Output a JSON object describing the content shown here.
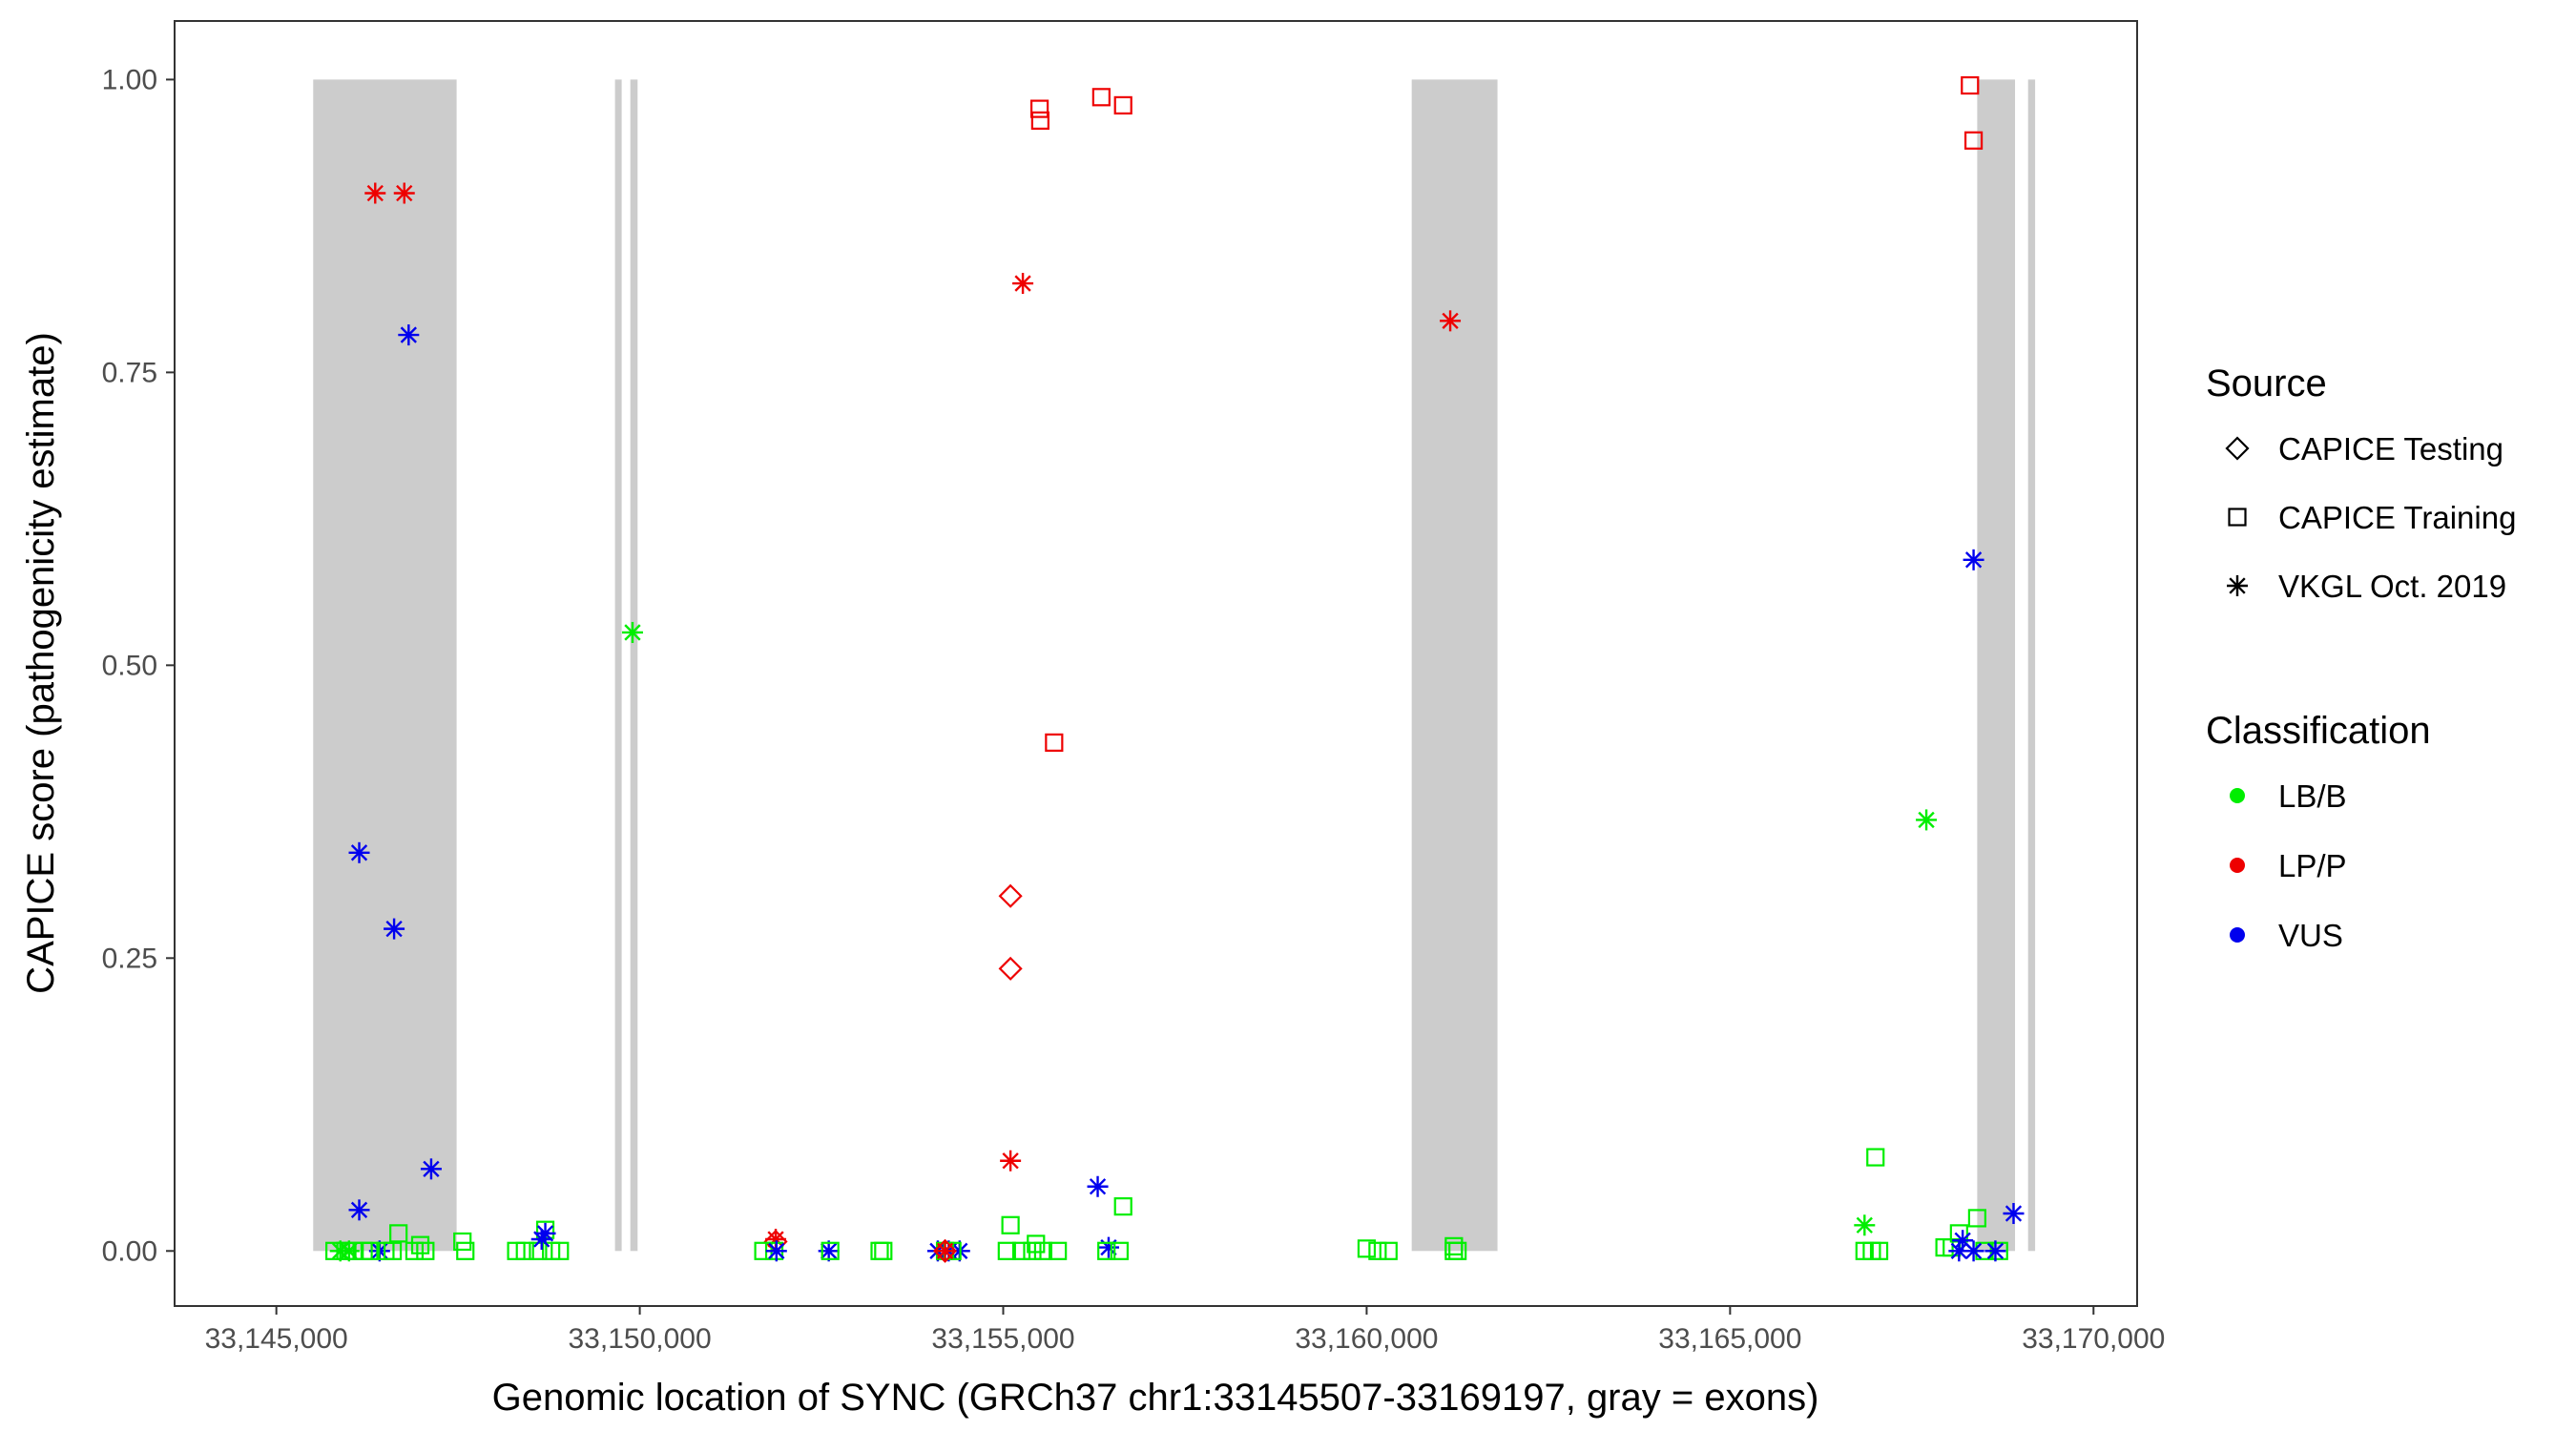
{
  "chart_data": {
    "type": "scatter",
    "title": "",
    "xlabel": "Genomic location of SYNC (GRCh37 chr1:33145507-33169197, gray = exons)",
    "ylabel": "CAPICE score (pathogenicity estimate)",
    "xlim": [
      33143600,
      33170600
    ],
    "ylim": [
      -0.047,
      1.05
    ],
    "x_ticks": [
      33145000,
      33150000,
      33155000,
      33160000,
      33165000,
      33170000
    ],
    "x_tick_labels": [
      "33,145,000",
      "33,150,000",
      "33,155,000",
      "33,160,000",
      "33,165,000",
      "33,170,000"
    ],
    "y_ticks": [
      0,
      0.25,
      0.5,
      0.75,
      1.0
    ],
    "y_tick_labels": [
      "0.00",
      "0.25",
      "0.50",
      "0.75",
      "1.00"
    ],
    "grid": false,
    "exons": [
      [
        33145507,
        33147480
      ],
      [
        33149670,
        33149740
      ],
      [
        33149870,
        33149970
      ],
      [
        33160620,
        33161800
      ],
      [
        33168400,
        33168920
      ],
      [
        33169100,
        33169197
      ]
    ],
    "legend": {
      "placement": "right",
      "source_title": "Source",
      "source_entries": [
        {
          "key": "testing",
          "label": "CAPICE Testing",
          "shape": "diamond"
        },
        {
          "key": "training",
          "label": "CAPICE Training",
          "shape": "square"
        },
        {
          "key": "vkgl",
          "label": "VKGL Oct. 2019",
          "shape": "asterisk"
        }
      ],
      "class_title": "Classification",
      "class_entries": [
        {
          "key": "LB",
          "label": "LB/B",
          "color": "#00ee00"
        },
        {
          "key": "LP",
          "label": "LP/P",
          "color": "#ee0000"
        },
        {
          "key": "VUS",
          "label": "VUS",
          "color": "#0000ee"
        }
      ]
    },
    "points": [
      {
        "x": 33146360,
        "y": 0.903,
        "src": "vkgl",
        "cls": "LP"
      },
      {
        "x": 33146760,
        "y": 0.903,
        "src": "vkgl",
        "cls": "LP"
      },
      {
        "x": 33146820,
        "y": 0.782,
        "src": "vkgl",
        "cls": "VUS"
      },
      {
        "x": 33146140,
        "y": 0.34,
        "src": "vkgl",
        "cls": "VUS"
      },
      {
        "x": 33146620,
        "y": 0.275,
        "src": "vkgl",
        "cls": "VUS"
      },
      {
        "x": 33147130,
        "y": 0.07,
        "src": "vkgl",
        "cls": "VUS"
      },
      {
        "x": 33146140,
        "y": 0.035,
        "src": "vkgl",
        "cls": "VUS"
      },
      {
        "x": 33146420,
        "y": 0.0,
        "src": "vkgl",
        "cls": "VUS"
      },
      {
        "x": 33145880,
        "y": 0.0,
        "src": "vkgl",
        "cls": "LB"
      },
      {
        "x": 33146000,
        "y": 0.0,
        "src": "vkgl",
        "cls": "LB"
      },
      {
        "x": 33145800,
        "y": 0.0,
        "src": "training",
        "cls": "LB"
      },
      {
        "x": 33145950,
        "y": 0.0,
        "src": "training",
        "cls": "LB"
      },
      {
        "x": 33146060,
        "y": 0.0,
        "src": "training",
        "cls": "LB"
      },
      {
        "x": 33146200,
        "y": 0.0,
        "src": "training",
        "cls": "LB"
      },
      {
        "x": 33146300,
        "y": 0.0,
        "src": "training",
        "cls": "LB"
      },
      {
        "x": 33146500,
        "y": 0.0,
        "src": "training",
        "cls": "LB"
      },
      {
        "x": 33146600,
        "y": 0.0,
        "src": "training",
        "cls": "LB"
      },
      {
        "x": 33146680,
        "y": 0.015,
        "src": "training",
        "cls": "LB"
      },
      {
        "x": 33146900,
        "y": 0.0,
        "src": "training",
        "cls": "LB"
      },
      {
        "x": 33146980,
        "y": 0.005,
        "src": "training",
        "cls": "LB"
      },
      {
        "x": 33147050,
        "y": 0.0,
        "src": "training",
        "cls": "LB"
      },
      {
        "x": 33147560,
        "y": 0.008,
        "src": "training",
        "cls": "LB"
      },
      {
        "x": 33147600,
        "y": 0.0,
        "src": "training",
        "cls": "LB"
      },
      {
        "x": 33148300,
        "y": 0.0,
        "src": "training",
        "cls": "LB"
      },
      {
        "x": 33148420,
        "y": 0.0,
        "src": "training",
        "cls": "LB"
      },
      {
        "x": 33148600,
        "y": 0.0,
        "src": "training",
        "cls": "LB"
      },
      {
        "x": 33148700,
        "y": 0.018,
        "src": "training",
        "cls": "LB"
      },
      {
        "x": 33148780,
        "y": 0.0,
        "src": "training",
        "cls": "LB"
      },
      {
        "x": 33148900,
        "y": 0.0,
        "src": "training",
        "cls": "LB"
      },
      {
        "x": 33148650,
        "y": 0.01,
        "src": "vkgl",
        "cls": "VUS"
      },
      {
        "x": 33148700,
        "y": 0.015,
        "src": "vkgl",
        "cls": "VUS"
      },
      {
        "x": 33149900,
        "y": 0.528,
        "src": "vkgl",
        "cls": "LB"
      },
      {
        "x": 33151870,
        "y": 0.01,
        "src": "vkgl",
        "cls": "LP"
      },
      {
        "x": 33151870,
        "y": 0.008,
        "src": "testing",
        "cls": "LP"
      },
      {
        "x": 33151700,
        "y": 0.0,
        "src": "training",
        "cls": "LB"
      },
      {
        "x": 33151850,
        "y": 0.0,
        "src": "training",
        "cls": "LB"
      },
      {
        "x": 33151880,
        "y": 0.0,
        "src": "vkgl",
        "cls": "VUS"
      },
      {
        "x": 33152600,
        "y": 0.0,
        "src": "vkgl",
        "cls": "VUS"
      },
      {
        "x": 33152620,
        "y": 0.0,
        "src": "training",
        "cls": "LB"
      },
      {
        "x": 33153300,
        "y": 0.0,
        "src": "training",
        "cls": "LB"
      },
      {
        "x": 33153350,
        "y": 0.0,
        "src": "training",
        "cls": "LB"
      },
      {
        "x": 33154100,
        "y": 0.0,
        "src": "vkgl",
        "cls": "VUS"
      },
      {
        "x": 33154250,
        "y": 0.0,
        "src": "vkgl",
        "cls": "VUS"
      },
      {
        "x": 33154400,
        "y": 0.0,
        "src": "vkgl",
        "cls": "VUS"
      },
      {
        "x": 33154200,
        "y": 0.0,
        "src": "training",
        "cls": "LB"
      },
      {
        "x": 33154300,
        "y": 0.0,
        "src": "training",
        "cls": "LB"
      },
      {
        "x": 33154200,
        "y": 0.0,
        "src": "testing",
        "cls": "LP"
      },
      {
        "x": 33154200,
        "y": 0.0,
        "src": "vkgl",
        "cls": "LP"
      },
      {
        "x": 33155270,
        "y": 0.826,
        "src": "vkgl",
        "cls": "LP"
      },
      {
        "x": 33155100,
        "y": 0.077,
        "src": "vkgl",
        "cls": "LP"
      },
      {
        "x": 33155100,
        "y": 0.303,
        "src": "testing",
        "cls": "LP"
      },
      {
        "x": 33155100,
        "y": 0.241,
        "src": "testing",
        "cls": "LP"
      },
      {
        "x": 33155500,
        "y": 0.975,
        "src": "training",
        "cls": "LP"
      },
      {
        "x": 33155510,
        "y": 0.965,
        "src": "training",
        "cls": "LP"
      },
      {
        "x": 33156350,
        "y": 0.985,
        "src": "training",
        "cls": "LP"
      },
      {
        "x": 33156650,
        "y": 0.978,
        "src": "training",
        "cls": "LP"
      },
      {
        "x": 33155700,
        "y": 0.434,
        "src": "training",
        "cls": "LP"
      },
      {
        "x": 33155100,
        "y": 0.022,
        "src": "training",
        "cls": "LB"
      },
      {
        "x": 33155050,
        "y": 0.0,
        "src": "training",
        "cls": "LB"
      },
      {
        "x": 33155250,
        "y": 0.0,
        "src": "training",
        "cls": "LB"
      },
      {
        "x": 33155400,
        "y": 0.0,
        "src": "training",
        "cls": "LB"
      },
      {
        "x": 33155450,
        "y": 0.006,
        "src": "training",
        "cls": "LB"
      },
      {
        "x": 33155550,
        "y": 0.0,
        "src": "training",
        "cls": "LB"
      },
      {
        "x": 33155750,
        "y": 0.0,
        "src": "training",
        "cls": "LB"
      },
      {
        "x": 33156300,
        "y": 0.055,
        "src": "vkgl",
        "cls": "VUS"
      },
      {
        "x": 33156450,
        "y": 0.003,
        "src": "vkgl",
        "cls": "VUS"
      },
      {
        "x": 33156650,
        "y": 0.038,
        "src": "training",
        "cls": "LB"
      },
      {
        "x": 33156420,
        "y": 0.0,
        "src": "training",
        "cls": "LB"
      },
      {
        "x": 33156600,
        "y": 0.0,
        "src": "training",
        "cls": "LB"
      },
      {
        "x": 33160000,
        "y": 0.002,
        "src": "training",
        "cls": "LB"
      },
      {
        "x": 33160150,
        "y": 0.0,
        "src": "training",
        "cls": "LB"
      },
      {
        "x": 33160300,
        "y": 0.0,
        "src": "training",
        "cls": "LB"
      },
      {
        "x": 33161250,
        "y": 0.0,
        "src": "training",
        "cls": "LB"
      },
      {
        "x": 33161200,
        "y": 0.0,
        "src": "training",
        "cls": "LB"
      },
      {
        "x": 33161150,
        "y": 0.794,
        "src": "vkgl",
        "cls": "LP"
      },
      {
        "x": 33161200,
        "y": 0.004,
        "src": "training",
        "cls": "LB"
      },
      {
        "x": 33166850,
        "y": 0.022,
        "src": "vkgl",
        "cls": "LB"
      },
      {
        "x": 33166850,
        "y": 0.0,
        "src": "training",
        "cls": "LB"
      },
      {
        "x": 33166950,
        "y": 0.0,
        "src": "training",
        "cls": "LB"
      },
      {
        "x": 33167050,
        "y": 0.0,
        "src": "training",
        "cls": "LB"
      },
      {
        "x": 33167000,
        "y": 0.08,
        "src": "training",
        "cls": "LB"
      },
      {
        "x": 33167700,
        "y": 0.368,
        "src": "vkgl",
        "cls": "LB"
      },
      {
        "x": 33167950,
        "y": 0.003,
        "src": "training",
        "cls": "LB"
      },
      {
        "x": 33168050,
        "y": 0.003,
        "src": "training",
        "cls": "LB"
      },
      {
        "x": 33168150,
        "y": 0.015,
        "src": "training",
        "cls": "LB"
      },
      {
        "x": 33168400,
        "y": 0.028,
        "src": "training",
        "cls": "LB"
      },
      {
        "x": 33168500,
        "y": 0.0,
        "src": "training",
        "cls": "LB"
      },
      {
        "x": 33168700,
        "y": 0.0,
        "src": "training",
        "cls": "LB"
      },
      {
        "x": 33168300,
        "y": 0.995,
        "src": "training",
        "cls": "LP"
      },
      {
        "x": 33168350,
        "y": 0.948,
        "src": "training",
        "cls": "LP"
      },
      {
        "x": 33168350,
        "y": 0.59,
        "src": "vkgl",
        "cls": "VUS"
      },
      {
        "x": 33168200,
        "y": 0.009,
        "src": "vkgl",
        "cls": "VUS"
      },
      {
        "x": 33168150,
        "y": 0.0,
        "src": "vkgl",
        "cls": "VUS"
      },
      {
        "x": 33168350,
        "y": 0.0,
        "src": "vkgl",
        "cls": "VUS"
      },
      {
        "x": 33168650,
        "y": 0.0,
        "src": "vkgl",
        "cls": "VUS"
      },
      {
        "x": 33168900,
        "y": 0.032,
        "src": "vkgl",
        "cls": "VUS"
      }
    ]
  }
}
